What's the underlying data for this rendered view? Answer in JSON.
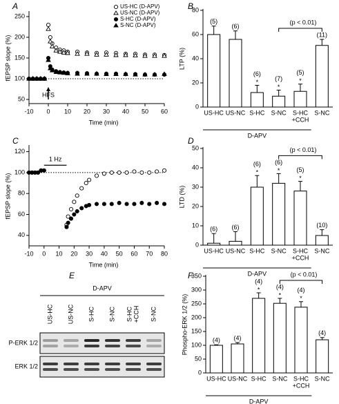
{
  "chart_data": [
    {
      "type": "line",
      "panel": "A",
      "x_label": "Time (min)",
      "y_label": "fEPSP slope (%)",
      "x": [
        -10,
        -8,
        -6,
        -4,
        -2,
        0,
        1,
        2,
        4,
        6,
        8,
        10,
        15,
        20,
        25,
        30,
        35,
        40,
        45,
        50,
        55,
        60
      ],
      "series": [
        {
          "name": "US-HC (D-APV)",
          "marker": "circle",
          "filled": false,
          "color": "#000000",
          "values": [
            100,
            100,
            100,
            100,
            100,
            230,
            200,
            185,
            175,
            170,
            168,
            165,
            165,
            163,
            162,
            163,
            162,
            160,
            160,
            158,
            158,
            157
          ]
        },
        {
          "name": "US-NC (D-APV)",
          "marker": "triangle",
          "filled": false,
          "color": "#000000",
          "values": [
            100,
            100,
            100,
            100,
            100,
            220,
            190,
            178,
            168,
            165,
            163,
            162,
            160,
            160,
            158,
            158,
            157,
            157,
            156,
            155,
            155,
            155
          ]
        },
        {
          "name": "S-HC (D-APV)",
          "marker": "circle",
          "filled": true,
          "color": "#000000",
          "values": [
            100,
            100,
            100,
            100,
            100,
            150,
            130,
            122,
            118,
            116,
            115,
            114,
            114,
            113,
            112,
            112,
            112,
            111,
            111,
            110,
            110,
            110
          ]
        },
        {
          "name": "S-NC (D-APV)",
          "marker": "triangle",
          "filled": true,
          "color": "#000000",
          "values": [
            100,
            100,
            100,
            100,
            100,
            145,
            125,
            120,
            116,
            115,
            114,
            113,
            112,
            112,
            112,
            111,
            111,
            111,
            110,
            110,
            110,
            111
          ]
        }
      ],
      "xlim": [
        -10,
        60
      ],
      "xticks": [
        -10,
        0,
        10,
        20,
        30,
        40,
        50,
        60
      ],
      "ylim": [
        40,
        260
      ],
      "yticks": [
        50,
        100,
        150,
        200,
        250
      ],
      "baseline": 100,
      "annotation": {
        "label": "HFS",
        "x": 0
      }
    },
    {
      "type": "bar",
      "panel": "B",
      "y_label": "LTP (%)",
      "categories": [
        [
          "US-HC"
        ],
        [
          "US-NC"
        ],
        [
          "S-HC"
        ],
        [
          "S-NC"
        ],
        [
          "S-HC",
          "+CCH"
        ],
        [
          "S-NC"
        ]
      ],
      "values": [
        60,
        56,
        12,
        9,
        13,
        51
      ],
      "errors": [
        7,
        7,
        6,
        5,
        6,
        5
      ],
      "n_labels": [
        "(5)",
        "(6)",
        "(6)",
        "(7)",
        "(5)",
        "(11)"
      ],
      "significance": [
        null,
        null,
        "*",
        "*",
        "*",
        null
      ],
      "comparison": {
        "from": 3,
        "to": 5,
        "label": "(p < 0.01)"
      },
      "group": {
        "label": "D-APV",
        "from": 0,
        "to": 4
      },
      "ylim": [
        0,
        80
      ],
      "yticks": [
        0,
        20,
        40,
        60,
        80
      ],
      "color": "#ffffff"
    },
    {
      "type": "line",
      "panel": "C",
      "x_label": "Time (min)",
      "y_label": "fEPSP slope (%)",
      "x": [
        -10,
        -8,
        -6,
        -4,
        -2,
        0,
        15,
        16,
        18,
        20,
        22,
        25,
        28,
        30,
        35,
        40,
        45,
        50,
        55,
        60,
        65,
        70,
        75,
        80
      ],
      "series": [
        {
          "marker": "circle",
          "filled": false,
          "color": "#000000",
          "values": [
            100,
            100,
            100,
            100,
            102,
            102,
            50,
            58,
            65,
            72,
            78,
            85,
            90,
            93,
            97,
            99,
            100,
            100,
            100,
            101,
            100,
            100,
            101,
            102
          ]
        },
        {
          "marker": "circle",
          "filled": true,
          "color": "#000000",
          "values": [
            100,
            100,
            100,
            100,
            102,
            102,
            48,
            52,
            56,
            60,
            63,
            66,
            68,
            69,
            70,
            70,
            70,
            71,
            70,
            70,
            71,
            70,
            71,
            70
          ]
        }
      ],
      "xlim": [
        -10,
        80
      ],
      "xticks": [
        -10,
        0,
        10,
        20,
        30,
        40,
        50,
        60,
        70,
        80
      ],
      "ylim": [
        30,
        125
      ],
      "yticks": [
        40,
        60,
        80,
        100,
        120
      ],
      "baseline": 100,
      "stimulus": {
        "label": "1 Hz",
        "from": 0,
        "to": 15,
        "level": 107
      }
    },
    {
      "type": "bar",
      "panel": "D",
      "y_label": "LTD (%)",
      "categories": [
        [
          "US-HC"
        ],
        [
          "US-NC"
        ],
        [
          "S-HC"
        ],
        [
          "S-NC"
        ],
        [
          "S-HC",
          "+CCH"
        ],
        [
          "S-NC"
        ]
      ],
      "values": [
        1,
        2,
        30,
        32,
        28,
        5
      ],
      "errors": [
        5,
        5,
        6,
        5,
        5,
        3
      ],
      "n_labels": [
        "(6)",
        "(6)",
        "(6)",
        "(6)",
        "(5)",
        "(10)"
      ],
      "significance": [
        null,
        null,
        "*",
        "*",
        "*",
        null
      ],
      "comparison": {
        "from": 3,
        "to": 5,
        "label": "(p < 0.01)"
      },
      "group": {
        "label": "D-APV",
        "from": 0,
        "to": 4
      },
      "ylim": [
        0,
        50
      ],
      "yticks": [
        0,
        10,
        20,
        30,
        40,
        50
      ],
      "color": "#ffffff"
    },
    {
      "type": "blot",
      "panel": "E",
      "group_label": "D-APV",
      "lanes": [
        [
          "US-HC"
        ],
        [
          "US-NC"
        ],
        [
          "S-HC"
        ],
        [
          "S-NC"
        ],
        [
          "S-HC",
          "+CCH"
        ],
        [
          "S-NC"
        ]
      ],
      "rows": [
        "P-ERK 1/2",
        "ERK 1/2"
      ]
    },
    {
      "type": "bar",
      "panel": "F",
      "y_label": "Phospho-ERK 1/2 (%)",
      "categories": [
        [
          "US-HC"
        ],
        [
          "US-NC"
        ],
        [
          "S-HC"
        ],
        [
          "S-NC"
        ],
        [
          "S-HC",
          "+CCH"
        ],
        [
          "S-NC"
        ]
      ],
      "values": [
        100,
        105,
        270,
        252,
        238,
        120
      ],
      "errors": [
        2,
        5,
        20,
        18,
        20,
        8
      ],
      "n_labels": [
        "(4)",
        "(4)",
        "(4)",
        "(4)",
        "(4)",
        "(4)"
      ],
      "significance": [
        null,
        null,
        "*",
        "*",
        "*",
        null
      ],
      "comparison": {
        "from": 3,
        "to": 5,
        "label": "(p < 0.01)"
      },
      "group": {
        "label": "D-APV",
        "from": 0,
        "to": 4
      },
      "ylim": [
        0,
        350
      ],
      "yticks": [
        0,
        50,
        100,
        150,
        200,
        250,
        300,
        350
      ],
      "color": "#ffffff"
    }
  ]
}
